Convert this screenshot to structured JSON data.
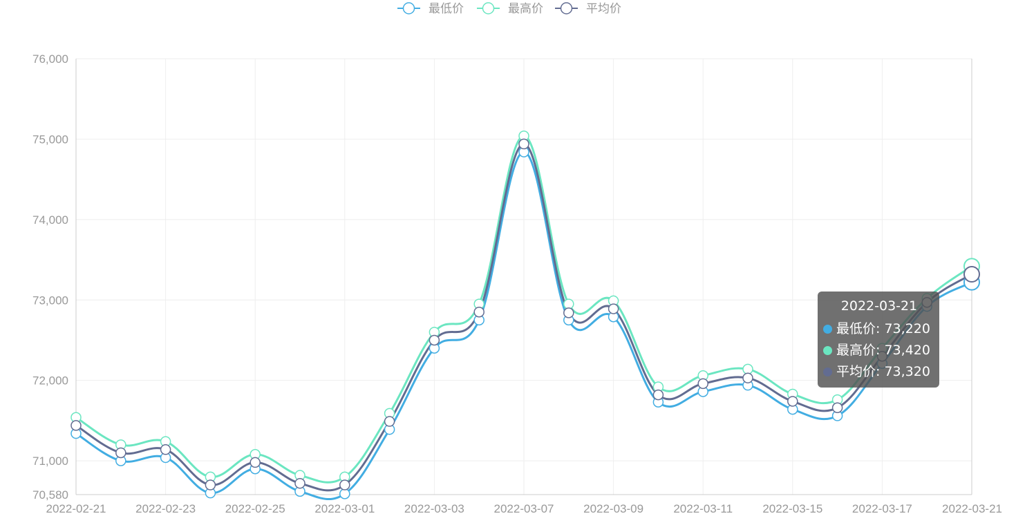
{
  "colors": {
    "low": "#42ade2",
    "high": "#6be6c1",
    "avg": "#626c91",
    "grid": "#eeeeee",
    "axis": "#cccccc"
  },
  "legend": [
    {
      "key": "low",
      "label": "最低价"
    },
    {
      "key": "high",
      "label": "最高价"
    },
    {
      "key": "avg",
      "label": "平均价"
    }
  ],
  "tooltip": {
    "title": "2022-03-21",
    "rows": [
      {
        "key": "low",
        "text": "最低价: 73,220"
      },
      {
        "key": "high",
        "text": "最高价: 73,420"
      },
      {
        "key": "avg",
        "text": "平均价: 73,320"
      }
    ]
  },
  "chart_data": {
    "type": "line",
    "x": [
      "2022-02-21",
      "2022-02-22",
      "2022-02-23",
      "2022-02-24",
      "2022-02-25",
      "2022-02-26",
      "2022-03-01",
      "2022-03-02",
      "2022-03-03",
      "2022-03-04",
      "2022-03-07",
      "2022-03-08",
      "2022-03-09",
      "2022-03-10",
      "2022-03-11",
      "2022-03-14",
      "2022-03-15",
      "2022-03-16",
      "2022-03-17",
      "2022-03-18",
      "2022-03-21"
    ],
    "x_tick_labels": [
      "2022-02-21",
      "2022-02-23",
      "2022-02-25",
      "2022-03-01",
      "2022-03-03",
      "2022-03-07",
      "2022-03-09",
      "2022-03-11",
      "2022-03-15",
      "2022-03-17",
      "2022-03-21"
    ],
    "y_tick_labels": [
      "70,580",
      "71,000",
      "72,000",
      "73,000",
      "74,000",
      "75,000",
      "76,000"
    ],
    "y_ticks": [
      70580,
      71000,
      72000,
      73000,
      74000,
      75000,
      76000
    ],
    "ylim": [
      70580,
      76000
    ],
    "grid": true,
    "legend_position": "top-center",
    "series": [
      {
        "name": "最低价",
        "key": "low",
        "values": [
          71340,
          71000,
          71040,
          70600,
          70900,
          70620,
          70590,
          71390,
          72400,
          72750,
          74840,
          72750,
          72790,
          71730,
          71860,
          71940,
          71640,
          71560,
          72210,
          72920,
          73220
        ]
      },
      {
        "name": "最高价",
        "key": "high",
        "values": [
          71540,
          71200,
          71240,
          70800,
          71080,
          70820,
          70800,
          71590,
          72600,
          72950,
          75040,
          72950,
          72990,
          71920,
          72060,
          72140,
          71830,
          71760,
          72400,
          73020,
          73420
        ]
      },
      {
        "name": "平均价",
        "key": "avg",
        "values": [
          71440,
          71100,
          71140,
          70700,
          70980,
          70720,
          70700,
          71490,
          72500,
          72850,
          74940,
          72840,
          72890,
          71820,
          71960,
          72030,
          71740,
          71660,
          72300,
          72970,
          73320
        ]
      }
    ]
  }
}
